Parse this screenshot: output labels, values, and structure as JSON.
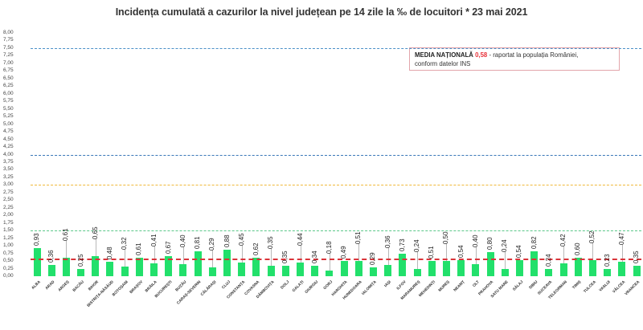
{
  "header": {
    "title": "Incidența cumulată a cazurilor la nivel județean pe 14 zile la ‰ de locuitori *  23 mai 2021"
  },
  "legend": {
    "label": "MEDIA NAȚIONALĂ",
    "value": "0,58",
    "text_line1": " - raportat la populația României,",
    "text_line2": "conform datelor INS"
  },
  "colors": {
    "bar": "#22e06b",
    "line_7_5": "#4a90c8",
    "line_4_0": "#3a78b8",
    "line_3_0": "#f0b93a",
    "line_1_5": "#5cc88a",
    "line_national": "#d9343a"
  },
  "chart_data": {
    "type": "bar",
    "title": "Incidența cumulată a cazurilor la nivel județean pe 14 zile la ‰ de locuitori *  23 mai 2021",
    "xlabel": "",
    "ylabel": "",
    "ylim": [
      0,
      8
    ],
    "yticks": [
      "0,00",
      "0,25",
      "0,50",
      "0,75",
      "1,00",
      "1,25",
      "1,50",
      "1,75",
      "2,00",
      "2,25",
      "2,50",
      "2,75",
      "3,00",
      "3,25",
      "3,50",
      "3,75",
      "4,00",
      "4,25",
      "4,50",
      "4,75",
      "5,00",
      "5,25",
      "5,50",
      "5,75",
      "6,00",
      "6,25",
      "6,50",
      "6,75",
      "7,00",
      "7,25",
      "7,50",
      "7,75",
      "8,00"
    ],
    "grid": false,
    "legend_position": "top-right box",
    "categories": [
      "ALBA",
      "ARAD",
      "ARGEȘ",
      "BACĂU",
      "BIHOR",
      "BISTRIȚA-NĂSĂUD",
      "BOTOȘANI",
      "BRAȘOV",
      "BRĂILA",
      "BUCUREȘTI",
      "BUZĂU",
      "CARAȘ-SEVERIN",
      "CĂLĂRAȘI",
      "CLUJ",
      "CONSTANȚA",
      "COVASNA",
      "DÂMBOVIȚA",
      "DOLJ",
      "GALAȚI",
      "GIURGIU",
      "GORJ",
      "HARGHITA",
      "HUNEDOARA",
      "IALOMIȚA",
      "IAȘI",
      "ILFOV",
      "MARAMUREȘ",
      "MEHEDINȚI",
      "MUREȘ",
      "NEAMȚ",
      "OLT",
      "PRAHOVA",
      "SATU MARE",
      "SĂLAJ",
      "SIBIU",
      "SUCEAVA",
      "TELEORMAN",
      "TIMIȘ",
      "TULCEA",
      "VASLUI",
      "VÂLCEA",
      "VRANCEA"
    ],
    "values": [
      0.93,
      0.36,
      0.61,
      0.25,
      0.65,
      0.48,
      0.32,
      0.61,
      0.41,
      0.67,
      0.4,
      0.81,
      0.29,
      0.88,
      0.45,
      0.62,
      0.35,
      0.35,
      0.44,
      0.34,
      0.18,
      0.49,
      0.51,
      0.29,
      0.36,
      0.73,
      0.24,
      0.51,
      0.5,
      0.54,
      0.4,
      0.8,
      0.24,
      0.54,
      0.82,
      0.24,
      0.42,
      0.6,
      0.52,
      0.23,
      0.47,
      0.35
    ],
    "value_labels": [
      "0,93",
      "0,36",
      "0,61",
      "0,25",
      "0,65",
      "0,48",
      "0,32",
      "0,61",
      "0,41",
      "0,67",
      "0,40",
      "0,81",
      "0,29",
      "0,88",
      "0,45",
      "0,62",
      "0,35",
      "0,35",
      "0,44",
      "0,34",
      "0,18",
      "0,49",
      "0,51",
      "0,29",
      "0,36",
      "0,73",
      "0,24",
      "0,51",
      "0,50",
      "0,54",
      "0,40",
      "0,80",
      "0,24",
      "0,54",
      "0,82",
      "0,24",
      "0,42",
      "0,60",
      "0,52",
      "0,23",
      "0,47",
      "0,35"
    ],
    "reference_lines": [
      {
        "value": 7.5,
        "color": "#4a90c8",
        "style": "dashed"
      },
      {
        "value": 4.0,
        "color": "#3a78b8",
        "style": "dashed"
      },
      {
        "value": 3.0,
        "color": "#f0b93a",
        "style": "dashed"
      },
      {
        "value": 1.5,
        "color": "#5cc88a",
        "style": "dashed"
      },
      {
        "value": 0.58,
        "color": "#d9343a",
        "style": "dashed",
        "label": "MEDIA NAȚIONALĂ 0,58"
      }
    ]
  }
}
